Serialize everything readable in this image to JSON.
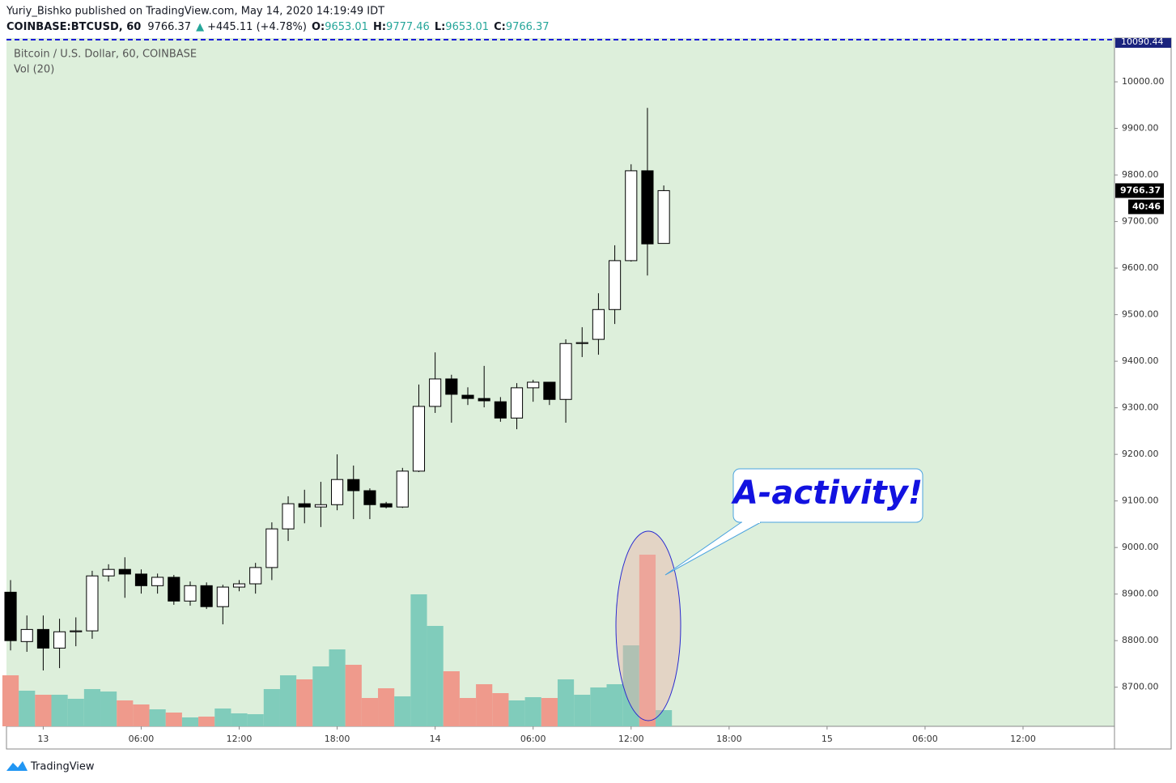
{
  "header": {
    "publisher": "Yuriy_Bishko published on TradingView.com, May 14, 2020 14:19:49 IDT",
    "symbol": "COINBASE:BTCUSD, 60",
    "price": "9766.37",
    "arrow": "▲",
    "change": "+445.11 (+4.78%)",
    "open_label": "O:",
    "open": "9653.01",
    "high_label": "H:",
    "high": "9777.46",
    "low_label": "L:",
    "low": "9653.01",
    "close_label": "C:",
    "close": "9766.37"
  },
  "footer": {
    "brand": "TradingView"
  },
  "chart_data": {
    "type": "candlestick",
    "title": "Bitcoin / U.S. Dollar, 60, COINBASE",
    "volume_title": "Vol (20)",
    "open": [
      8904,
      8798,
      8824,
      8784,
      8819,
      8821,
      8939,
      8953,
      8943,
      8918,
      8936,
      8885,
      8918,
      8873,
      8915,
      8922,
      8957,
      9040,
      9094,
      9087,
      9092,
      9146,
      9122,
      9094,
      9087,
      9164,
      9303,
      9362,
      9327,
      9320,
      9313,
      9278,
      9343,
      9355,
      9318,
      9438,
      9447,
      9511,
      9616,
      9809,
      9653.01
    ],
    "high": [
      8930,
      8854,
      8854,
      8847,
      8850,
      8950,
      8964,
      8979,
      8953,
      8944,
      8941,
      8927,
      8925,
      8920,
      8930,
      8967,
      9054,
      9110,
      9124,
      9141,
      9200,
      9176,
      9127,
      9098,
      9171,
      9350,
      9419,
      9371,
      9344,
      9390,
      9323,
      9353,
      9360,
      9355,
      9447,
      9473,
      9546,
      9649,
      9823,
      9944,
      9777.46
    ],
    "low": [
      8779,
      8776,
      8736,
      8741,
      8788,
      8804,
      8927,
      8892,
      8901,
      8901,
      8877,
      8875,
      8868,
      8835,
      8906,
      8901,
      8930,
      9014,
      9052,
      9044,
      9080,
      9061,
      9061,
      9084,
      9085,
      9162,
      9289,
      9268,
      9306,
      9301,
      9270,
      9254,
      9313,
      9306,
      9268,
      9409,
      9414,
      9480,
      9614,
      9584,
      9653.01
    ],
    "close": [
      8800,
      8824,
      8784,
      8819,
      8821,
      8939,
      8953,
      8943,
      8918,
      8936,
      8885,
      8918,
      8873,
      8915,
      8922,
      8957,
      9040,
      9094,
      9087,
      9092,
      9146,
      9122,
      9092,
      9087,
      9164,
      9303,
      9362,
      9329,
      9320,
      9315,
      9278,
      9343,
      9355,
      9318,
      9438,
      9440,
      9511,
      9616,
      9809,
      9652,
      9766.37
    ],
    "volume": [
      63,
      44,
      39,
      39,
      34,
      46,
      43,
      32,
      27,
      21,
      17,
      11,
      12,
      22,
      16,
      15,
      46,
      63,
      58,
      74,
      95,
      76,
      35,
      47,
      37,
      163,
      124,
      68,
      35,
      52,
      41,
      32,
      36,
      35,
      58,
      39,
      48,
      52,
      100,
      212,
      20
    ],
    "up_color": "#ffffff",
    "down_color": "#000000",
    "volume_up_color": "#80ccbb",
    "volume_down_color": "#ef9a8c",
    "background": "#ddefdb",
    "ylim": [
      8616,
      10094
    ],
    "yticks": [
      {
        "value": 8700,
        "label": "8700.00"
      },
      {
        "value": 8800,
        "label": "8800.00"
      },
      {
        "value": 8900,
        "label": "8900.00"
      },
      {
        "value": 9000,
        "label": "9000.00"
      },
      {
        "value": 9100,
        "label": "9100.00"
      },
      {
        "value": 9200,
        "label": "9200.00"
      },
      {
        "value": 9300,
        "label": "9300.00"
      },
      {
        "value": 9400,
        "label": "9400.00"
      },
      {
        "value": 9500,
        "label": "9500.00"
      },
      {
        "value": 9600,
        "label": "9600.00"
      },
      {
        "value": 9700,
        "label": "9700.00"
      },
      {
        "value": 9800,
        "label": "9800.00"
      },
      {
        "value": 9900,
        "label": "9900.00"
      },
      {
        "value": 10000,
        "label": "10000.00"
      }
    ],
    "xlim": [
      -0.25,
      67.6
    ],
    "xticks": [
      {
        "value": 2,
        "label": "13"
      },
      {
        "value": 8,
        "label": "06:00"
      },
      {
        "value": 14,
        "label": "12:00"
      },
      {
        "value": 20,
        "label": "18:00"
      },
      {
        "value": 26,
        "label": "14"
      },
      {
        "value": 32,
        "label": "06:00"
      },
      {
        "value": 38,
        "label": "12:00"
      },
      {
        "value": 44,
        "label": "18:00"
      },
      {
        "value": 50,
        "label": "15"
      },
      {
        "value": 56,
        "label": "06:00"
      },
      {
        "value": 62,
        "label": "12:00"
      }
    ],
    "high_line": {
      "value": 10090.44,
      "label": "10090.44"
    },
    "last_price": {
      "value": 9766.37,
      "label": "9766.37"
    },
    "countdown": "40:46",
    "annotation": "A-activity!",
    "grid": false
  }
}
